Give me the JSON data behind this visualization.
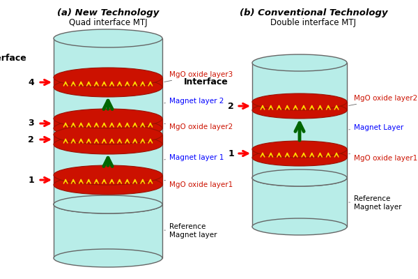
{
  "fig_width": 6.0,
  "fig_height": 4.0,
  "bg_color": "#ffffff",
  "title_a": "(a) New Technology",
  "subtitle_a": "Quad interface MTJ",
  "title_b": "(b) Conventional Technology",
  "subtitle_b": "Double interface MTJ",
  "cyl_color": "#b8ede8",
  "cyl_edge": "#666666",
  "mgo_color": "#cc1100",
  "mgo_edge": "#991100",
  "arrow_color": "#006600",
  "interface_label": "Interface",
  "ref_label": "Reference\nMagnet layer"
}
